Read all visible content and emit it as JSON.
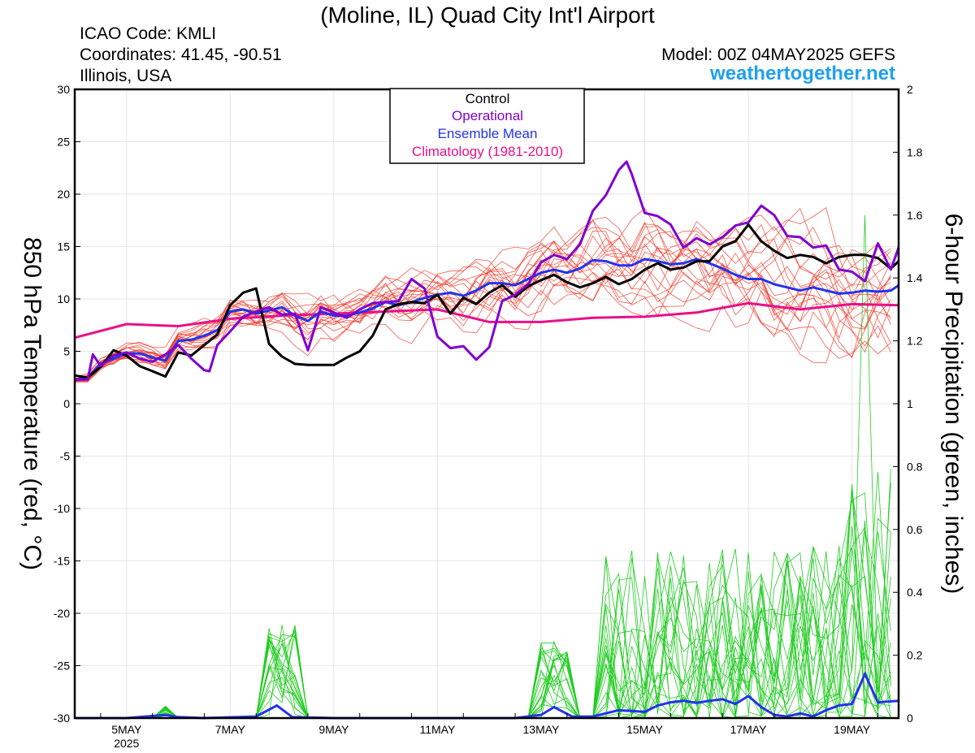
{
  "header": {
    "title": "(Moline, IL) Quad City Int'l Airport",
    "icao": "ICAO Code: KMLI",
    "coordinates": "Coordinates: 41.45, -90.51",
    "region": "Illinois, USA",
    "model": "Model: 00Z 04MAY2025 GEFS",
    "brand": "weathertogether.net"
  },
  "colors": {
    "member_temp": "#f04030",
    "member_precip": "#22cc22",
    "control": "#000000",
    "operational": "#8000d0",
    "mean": "#2233ee",
    "climatology": "#e8108a",
    "brand": "#1ea0f0"
  },
  "chart_data": {
    "type": "line",
    "x_unit": "days since 00Z 04MAY2025",
    "xlim": [
      0,
      15.9
    ],
    "x_ticks": [
      {
        "x": 1,
        "label": "5MAY",
        "sub": "2025"
      },
      {
        "x": 3,
        "label": "7MAY"
      },
      {
        "x": 5,
        "label": "9MAY"
      },
      {
        "x": 7,
        "label": "11MAY"
      },
      {
        "x": 9,
        "label": "13MAY"
      },
      {
        "x": 11,
        "label": "15MAY"
      },
      {
        "x": 13,
        "label": "17MAY"
      },
      {
        "x": 15,
        "label": "19MAY"
      }
    ],
    "ylabel": "850 hPa Temperature (red, °C)",
    "ylim": [
      -30,
      30
    ],
    "y_ticks": [
      30,
      25,
      20,
      15,
      10,
      5,
      0,
      -5,
      -10,
      -15,
      -20,
      -25,
      -30
    ],
    "y2label": "6-hour Precipitation (green, inches)",
    "y2lim": [
      0,
      2
    ],
    "y2_ticks": [
      "2",
      "1.8",
      "1.6",
      "1.4",
      "1.2",
      "1",
      "0.8",
      "0.6",
      "0.4",
      "0.2",
      "0"
    ],
    "legend": {
      "placement": "top-center",
      "entries": [
        {
          "label": "Control",
          "color": "#000000"
        },
        {
          "label": "Operational",
          "color": "#8000d0"
        },
        {
          "label": "Ensemble Mean",
          "color": "#2233ee"
        },
        {
          "label": "Climatology (1981-2010)",
          "color": "#e8108a"
        }
      ]
    },
    "series": [
      {
        "name": "Control",
        "axis": "temp",
        "points": [
          [
            0,
            2.7
          ],
          [
            0.25,
            2.5
          ],
          [
            0.5,
            3.5
          ],
          [
            0.75,
            5.1
          ],
          [
            1,
            4.6
          ],
          [
            1.25,
            3.6
          ],
          [
            1.5,
            3.1
          ],
          [
            1.75,
            2.6
          ],
          [
            2,
            4.9
          ],
          [
            2.25,
            4.6
          ],
          [
            2.5,
            5.6
          ],
          [
            2.75,
            6.6
          ],
          [
            3,
            9.4
          ],
          [
            3.25,
            10.6
          ],
          [
            3.5,
            11.0
          ],
          [
            3.75,
            5.7
          ],
          [
            4,
            4.5
          ],
          [
            4.25,
            3.8
          ],
          [
            4.5,
            3.7
          ],
          [
            4.75,
            3.7
          ],
          [
            5,
            3.7
          ],
          [
            5.25,
            4.4
          ],
          [
            5.5,
            5.0
          ],
          [
            5.75,
            6.5
          ],
          [
            6,
            9.0
          ],
          [
            6.25,
            9.5
          ],
          [
            6.5,
            9.7
          ],
          [
            6.75,
            9.6
          ],
          [
            7,
            10.4
          ],
          [
            7.25,
            8.6
          ],
          [
            7.5,
            10.1
          ],
          [
            7.75,
            9.5
          ],
          [
            8,
            10.6
          ],
          [
            8.25,
            11.3
          ],
          [
            8.5,
            10.2
          ],
          [
            8.75,
            11.2
          ],
          [
            9,
            11.8
          ],
          [
            9.25,
            12.3
          ],
          [
            9.5,
            11.6
          ],
          [
            9.75,
            11.1
          ],
          [
            10,
            11.5
          ],
          [
            10.25,
            12.1
          ],
          [
            10.5,
            11.4
          ],
          [
            10.75,
            11.9
          ],
          [
            11,
            12.8
          ],
          [
            11.25,
            13.4
          ],
          [
            11.5,
            12.8
          ],
          [
            11.75,
            13.0
          ],
          [
            12,
            13.6
          ],
          [
            12.25,
            13.6
          ],
          [
            12.5,
            15.0
          ],
          [
            12.75,
            15.5
          ],
          [
            13,
            17.1
          ],
          [
            13.25,
            15.5
          ],
          [
            13.5,
            14.6
          ],
          [
            13.75,
            13.9
          ],
          [
            14,
            14.2
          ],
          [
            14.25,
            14.0
          ],
          [
            14.5,
            13.4
          ],
          [
            14.75,
            14.0
          ],
          [
            15,
            14.2
          ],
          [
            15.25,
            14.2
          ],
          [
            15.5,
            13.9
          ],
          [
            15.75,
            12.9
          ],
          [
            15.9,
            13.6
          ]
        ]
      },
      {
        "name": "Operational",
        "axis": "temp",
        "points": [
          [
            0,
            2.3
          ],
          [
            0.25,
            2.3
          ],
          [
            0.35,
            4.7
          ],
          [
            0.5,
            3.6
          ],
          [
            0.75,
            4.6
          ],
          [
            1,
            4.9
          ],
          [
            1.25,
            4.3
          ],
          [
            1.5,
            4.0
          ],
          [
            1.75,
            4.7
          ],
          [
            2,
            5.6
          ],
          [
            2.25,
            4.3
          ],
          [
            2.5,
            3.2
          ],
          [
            2.6,
            3.1
          ],
          [
            2.75,
            5.6
          ],
          [
            3,
            6.9
          ],
          [
            3.25,
            8.3
          ],
          [
            3.5,
            8.8
          ],
          [
            3.75,
            9.2
          ],
          [
            4,
            8.5
          ],
          [
            4.25,
            8.6
          ],
          [
            4.5,
            5.1
          ],
          [
            4.75,
            9.2
          ],
          [
            5,
            8.7
          ],
          [
            5.25,
            8.2
          ],
          [
            5.5,
            9.0
          ],
          [
            5.75,
            9.6
          ],
          [
            6,
            9.7
          ],
          [
            6.25,
            9.8
          ],
          [
            6.5,
            11.9
          ],
          [
            6.75,
            11.0
          ],
          [
            7,
            6.4
          ],
          [
            7.25,
            5.3
          ],
          [
            7.5,
            5.5
          ],
          [
            7.75,
            4.2
          ],
          [
            8,
            5.4
          ],
          [
            8.25,
            9.8
          ],
          [
            8.5,
            10.4
          ],
          [
            8.75,
            11.4
          ],
          [
            9,
            13.5
          ],
          [
            9.25,
            14.2
          ],
          [
            9.5,
            13.8
          ],
          [
            9.75,
            15.2
          ],
          [
            10,
            18.4
          ],
          [
            10.25,
            19.9
          ],
          [
            10.5,
            22.3
          ],
          [
            10.65,
            23.1
          ],
          [
            10.75,
            21.9
          ],
          [
            11,
            18.2
          ],
          [
            11.25,
            17.9
          ],
          [
            11.5,
            17.1
          ],
          [
            11.75,
            14.9
          ],
          [
            12,
            15.8
          ],
          [
            12.25,
            15.2
          ],
          [
            12.5,
            15.9
          ],
          [
            12.75,
            17.0
          ],
          [
            13,
            17.3
          ],
          [
            13.25,
            18.9
          ],
          [
            13.5,
            18.0
          ],
          [
            13.75,
            16.0
          ],
          [
            14,
            15.9
          ],
          [
            14.25,
            14.9
          ],
          [
            14.5,
            15.1
          ],
          [
            14.75,
            12.8
          ],
          [
            15,
            12.6
          ],
          [
            15.25,
            11.7
          ],
          [
            15.5,
            15.3
          ],
          [
            15.75,
            12.8
          ],
          [
            15.9,
            14.9
          ]
        ]
      },
      {
        "name": "Ensemble Mean",
        "axis": "temp",
        "points": [
          [
            0,
            2.3
          ],
          [
            0.25,
            2.5
          ],
          [
            0.5,
            3.8
          ],
          [
            0.75,
            4.3
          ],
          [
            1,
            4.8
          ],
          [
            1.25,
            4.8
          ],
          [
            1.5,
            4.4
          ],
          [
            1.75,
            4.1
          ],
          [
            2,
            6.0
          ],
          [
            2.25,
            6.1
          ],
          [
            2.5,
            6.5
          ],
          [
            2.75,
            7.0
          ],
          [
            3,
            8.8
          ],
          [
            3.25,
            9.0
          ],
          [
            3.5,
            8.6
          ],
          [
            3.75,
            8.9
          ],
          [
            4,
            9.2
          ],
          [
            4.25,
            8.4
          ],
          [
            4.5,
            7.9
          ],
          [
            4.75,
            8.8
          ],
          [
            5,
            8.4
          ],
          [
            5.25,
            8.4
          ],
          [
            5.5,
            8.7
          ],
          [
            5.75,
            9.1
          ],
          [
            6,
            9.7
          ],
          [
            6.25,
            9.4
          ],
          [
            6.5,
            9.7
          ],
          [
            6.75,
            10.1
          ],
          [
            7,
            10.4
          ],
          [
            7.25,
            10.6
          ],
          [
            7.5,
            10.3
          ],
          [
            7.75,
            10.8
          ],
          [
            8,
            11.5
          ],
          [
            8.25,
            11.5
          ],
          [
            8.5,
            11.3
          ],
          [
            8.75,
            11.9
          ],
          [
            9,
            12.5
          ],
          [
            9.25,
            12.8
          ],
          [
            9.5,
            12.5
          ],
          [
            9.75,
            12.9
          ],
          [
            10,
            13.7
          ],
          [
            10.25,
            13.6
          ],
          [
            10.5,
            13.2
          ],
          [
            10.75,
            13.2
          ],
          [
            11,
            13.8
          ],
          [
            11.25,
            13.6
          ],
          [
            11.5,
            13.3
          ],
          [
            11.75,
            13.4
          ],
          [
            12,
            13.8
          ],
          [
            12.25,
            13.4
          ],
          [
            12.5,
            12.9
          ],
          [
            12.75,
            12.3
          ],
          [
            13,
            11.9
          ],
          [
            13.25,
            11.9
          ],
          [
            13.5,
            11.4
          ],
          [
            13.75,
            11.1
          ],
          [
            14,
            10.8
          ],
          [
            14.25,
            11.1
          ],
          [
            14.5,
            10.8
          ],
          [
            14.75,
            10.5
          ],
          [
            15,
            10.6
          ],
          [
            15.25,
            10.8
          ],
          [
            15.5,
            10.7
          ],
          [
            15.75,
            10.8
          ],
          [
            15.9,
            11.3
          ]
        ]
      },
      {
        "name": "Climatology (1981-2010)",
        "axis": "temp",
        "points": [
          [
            0,
            6.3
          ],
          [
            1,
            7.6
          ],
          [
            2,
            7.4
          ],
          [
            3,
            8.1
          ],
          [
            4,
            8.4
          ],
          [
            5,
            8.6
          ],
          [
            6,
            8.8
          ],
          [
            7,
            9.0
          ],
          [
            8,
            7.8
          ],
          [
            9,
            7.8
          ],
          [
            10,
            8.2
          ],
          [
            11,
            8.3
          ],
          [
            12,
            8.7
          ],
          [
            13,
            9.6
          ],
          [
            14,
            9.0
          ],
          [
            15,
            9.5
          ],
          [
            15.9,
            9.4
          ]
        ]
      },
      {
        "name": "Ensemble Mean",
        "axis": "precip",
        "points": [
          [
            0,
            0
          ],
          [
            1,
            0
          ],
          [
            1.75,
            0.01
          ],
          [
            2,
            0.003
          ],
          [
            2.5,
            0
          ],
          [
            3.5,
            0.005
          ],
          [
            3.9,
            0.04
          ],
          [
            4.2,
            0.003
          ],
          [
            5,
            0
          ],
          [
            6,
            0
          ],
          [
            7,
            0
          ],
          [
            8,
            0
          ],
          [
            8.5,
            0
          ],
          [
            9,
            0.01
          ],
          [
            9.25,
            0.035
          ],
          [
            9.6,
            0.005
          ],
          [
            10,
            0.005
          ],
          [
            10.5,
            0.025
          ],
          [
            11,
            0.02
          ],
          [
            11.25,
            0.04
          ],
          [
            11.5,
            0.05
          ],
          [
            11.75,
            0.055
          ],
          [
            12,
            0.048
          ],
          [
            12.25,
            0.055
          ],
          [
            12.5,
            0.06
          ],
          [
            12.75,
            0.045
          ],
          [
            13,
            0.07
          ],
          [
            13.25,
            0.035
          ],
          [
            13.5,
            0.01
          ],
          [
            13.75,
            0.005
          ],
          [
            14,
            0.015
          ],
          [
            14.25,
            0.005
          ],
          [
            14.5,
            0.025
          ],
          [
            14.75,
            0.04
          ],
          [
            15,
            0.045
          ],
          [
            15.25,
            0.14
          ],
          [
            15.5,
            0.05
          ],
          [
            15.9,
            0.055
          ]
        ]
      }
    ],
    "member_count": 20,
    "member_temp_spread_days": [
      0,
      15.9
    ],
    "member_precip_peak": {
      "x": 15.3,
      "y": 1.6
    }
  }
}
